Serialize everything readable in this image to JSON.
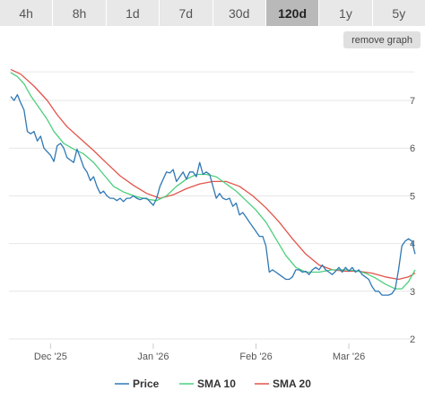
{
  "timeframes": [
    {
      "label": "4h",
      "active": false
    },
    {
      "label": "8h",
      "active": false
    },
    {
      "label": "1d",
      "active": false
    },
    {
      "label": "7d",
      "active": false
    },
    {
      "label": "30d",
      "active": false
    },
    {
      "label": "120d",
      "active": true
    },
    {
      "label": "1y",
      "active": false
    },
    {
      "label": "5y",
      "active": false
    }
  ],
  "remove_graph_label": "remove graph",
  "chart_data": {
    "type": "line",
    "ylim": [
      2,
      7.6
    ],
    "yticks": [
      2,
      3,
      4,
      5,
      6,
      7
    ],
    "xlim": [
      "2025-11-19",
      "2026-03-21"
    ],
    "xticks": [
      {
        "label": "Dec '25",
        "date": "2025-12-01"
      },
      {
        "label": "Jan '26",
        "date": "2026-01-01"
      },
      {
        "label": "Feb '26",
        "date": "2026-02-01"
      },
      {
        "label": "Mar '26",
        "date": "2026-03-01"
      }
    ],
    "grid": true,
    "legend_position": "bottom",
    "series": [
      {
        "name": "Price",
        "color": "#2f78b5",
        "points": [
          [
            "2025-11-19",
            7.08
          ],
          [
            "2025-11-20",
            7.0
          ],
          [
            "2025-11-21",
            7.12
          ],
          [
            "2025-11-22",
            6.95
          ],
          [
            "2025-11-23",
            6.8
          ],
          [
            "2025-11-24",
            6.35
          ],
          [
            "2025-11-25",
            6.3
          ],
          [
            "2025-11-26",
            6.35
          ],
          [
            "2025-11-27",
            6.15
          ],
          [
            "2025-11-28",
            6.25
          ],
          [
            "2025-11-29",
            6.0
          ],
          [
            "2025-12-01",
            5.85
          ],
          [
            "2025-12-02",
            5.72
          ],
          [
            "2025-12-03",
            6.05
          ],
          [
            "2025-12-04",
            6.1
          ],
          [
            "2025-12-05",
            6.0
          ],
          [
            "2025-12-06",
            5.8
          ],
          [
            "2025-12-07",
            5.75
          ],
          [
            "2025-12-08",
            5.7
          ],
          [
            "2025-12-09",
            5.98
          ],
          [
            "2025-12-10",
            5.8
          ],
          [
            "2025-12-11",
            5.6
          ],
          [
            "2025-12-12",
            5.5
          ],
          [
            "2025-12-13",
            5.32
          ],
          [
            "2025-12-14",
            5.4
          ],
          [
            "2025-12-15",
            5.2
          ],
          [
            "2025-12-16",
            5.05
          ],
          [
            "2025-12-17",
            5.1
          ],
          [
            "2025-12-18",
            5.0
          ],
          [
            "2025-12-19",
            4.95
          ],
          [
            "2025-12-20",
            4.95
          ],
          [
            "2025-12-21",
            4.9
          ],
          [
            "2025-12-22",
            4.95
          ],
          [
            "2025-12-23",
            4.88
          ],
          [
            "2025-12-24",
            4.95
          ],
          [
            "2025-12-25",
            4.95
          ],
          [
            "2025-12-26",
            5.0
          ],
          [
            "2025-12-27",
            4.95
          ],
          [
            "2025-12-28",
            4.92
          ],
          [
            "2025-12-29",
            4.95
          ],
          [
            "2025-12-30",
            4.95
          ],
          [
            "2026-01-01",
            4.8
          ],
          [
            "2026-01-02",
            4.95
          ],
          [
            "2026-01-03",
            5.2
          ],
          [
            "2026-01-04",
            5.35
          ],
          [
            "2026-01-05",
            5.5
          ],
          [
            "2026-01-06",
            5.48
          ],
          [
            "2026-01-07",
            5.55
          ],
          [
            "2026-01-08",
            5.3
          ],
          [
            "2026-01-09",
            5.4
          ],
          [
            "2026-01-10",
            5.5
          ],
          [
            "2026-01-11",
            5.35
          ],
          [
            "2026-01-12",
            5.5
          ],
          [
            "2026-01-13",
            5.5
          ],
          [
            "2026-01-14",
            5.4
          ],
          [
            "2026-01-15",
            5.7
          ],
          [
            "2026-01-16",
            5.45
          ],
          [
            "2026-01-17",
            5.5
          ],
          [
            "2026-01-18",
            5.45
          ],
          [
            "2026-01-19",
            5.2
          ],
          [
            "2026-01-20",
            4.95
          ],
          [
            "2026-01-21",
            5.05
          ],
          [
            "2026-01-22",
            4.95
          ],
          [
            "2026-01-23",
            4.92
          ],
          [
            "2026-01-24",
            4.95
          ],
          [
            "2026-01-25",
            4.78
          ],
          [
            "2026-01-26",
            4.85
          ],
          [
            "2026-01-27",
            4.6
          ],
          [
            "2026-01-28",
            4.65
          ],
          [
            "2026-01-29",
            4.55
          ],
          [
            "2026-01-30",
            4.45
          ],
          [
            "2026-01-31",
            4.35
          ],
          [
            "2026-02-01",
            4.25
          ],
          [
            "2026-02-02",
            4.15
          ],
          [
            "2026-02-03",
            4.15
          ],
          [
            "2026-02-04",
            3.95
          ],
          [
            "2026-02-05",
            3.4
          ],
          [
            "2026-02-06",
            3.45
          ],
          [
            "2026-02-07",
            3.4
          ],
          [
            "2026-02-08",
            3.35
          ],
          [
            "2026-02-09",
            3.3
          ],
          [
            "2026-02-10",
            3.25
          ],
          [
            "2026-02-11",
            3.25
          ],
          [
            "2026-02-12",
            3.3
          ],
          [
            "2026-02-13",
            3.45
          ],
          [
            "2026-02-14",
            3.45
          ],
          [
            "2026-02-15",
            3.4
          ],
          [
            "2026-02-16",
            3.42
          ],
          [
            "2026-02-17",
            3.35
          ],
          [
            "2026-02-18",
            3.45
          ],
          [
            "2026-02-19",
            3.5
          ],
          [
            "2026-02-20",
            3.45
          ],
          [
            "2026-02-21",
            3.55
          ],
          [
            "2026-02-22",
            3.45
          ],
          [
            "2026-02-23",
            3.4
          ],
          [
            "2026-02-24",
            3.35
          ],
          [
            "2026-02-25",
            3.42
          ],
          [
            "2026-02-26",
            3.5
          ],
          [
            "2026-02-27",
            3.4
          ],
          [
            "2026-02-28",
            3.5
          ],
          [
            "2026-03-01",
            3.42
          ],
          [
            "2026-03-02",
            3.5
          ],
          [
            "2026-03-03",
            3.4
          ],
          [
            "2026-03-04",
            3.45
          ],
          [
            "2026-03-05",
            3.35
          ],
          [
            "2026-03-06",
            3.3
          ],
          [
            "2026-03-07",
            3.25
          ],
          [
            "2026-03-08",
            3.1
          ],
          [
            "2026-03-09",
            3.0
          ],
          [
            "2026-03-10",
            3.0
          ],
          [
            "2026-03-11",
            2.92
          ],
          [
            "2026-03-12",
            2.92
          ],
          [
            "2026-03-13",
            2.92
          ],
          [
            "2026-03-14",
            2.95
          ],
          [
            "2026-03-15",
            3.05
          ],
          [
            "2026-03-16",
            3.45
          ],
          [
            "2026-03-17",
            3.95
          ],
          [
            "2026-03-18",
            4.05
          ],
          [
            "2026-03-19",
            4.1
          ],
          [
            "2026-03-20",
            4.05
          ],
          [
            "2026-03-21",
            3.78
          ]
        ]
      },
      {
        "name": "SMA 10",
        "color": "#4ccf7e",
        "points": [
          [
            "2025-11-19",
            7.58
          ],
          [
            "2025-11-21",
            7.5
          ],
          [
            "2025-11-23",
            7.35
          ],
          [
            "2025-11-25",
            7.1
          ],
          [
            "2025-11-27",
            6.9
          ],
          [
            "2025-11-30",
            6.6
          ],
          [
            "2025-12-02",
            6.35
          ],
          [
            "2025-12-05",
            6.1
          ],
          [
            "2025-12-08",
            5.98
          ],
          [
            "2025-12-11",
            5.88
          ],
          [
            "2025-12-14",
            5.7
          ],
          [
            "2025-12-17",
            5.45
          ],
          [
            "2025-12-20",
            5.2
          ],
          [
            "2025-12-23",
            5.08
          ],
          [
            "2025-12-27",
            4.98
          ],
          [
            "2025-12-31",
            4.92
          ],
          [
            "2026-01-02",
            4.9
          ],
          [
            "2026-01-05",
            5.0
          ],
          [
            "2026-01-08",
            5.2
          ],
          [
            "2026-01-11",
            5.35
          ],
          [
            "2026-01-14",
            5.45
          ],
          [
            "2026-01-17",
            5.45
          ],
          [
            "2026-01-20",
            5.4
          ],
          [
            "2026-01-23",
            5.25
          ],
          [
            "2026-01-26",
            5.1
          ],
          [
            "2026-01-29",
            4.9
          ],
          [
            "2026-02-01",
            4.7
          ],
          [
            "2026-02-04",
            4.45
          ],
          [
            "2026-02-07",
            4.1
          ],
          [
            "2026-02-10",
            3.75
          ],
          [
            "2026-02-13",
            3.5
          ],
          [
            "2026-02-16",
            3.4
          ],
          [
            "2026-02-20",
            3.4
          ],
          [
            "2026-02-24",
            3.45
          ],
          [
            "2026-02-28",
            3.45
          ],
          [
            "2026-03-03",
            3.43
          ],
          [
            "2026-03-06",
            3.38
          ],
          [
            "2026-03-09",
            3.28
          ],
          [
            "2026-03-12",
            3.15
          ],
          [
            "2026-03-15",
            3.05
          ],
          [
            "2026-03-17",
            3.05
          ],
          [
            "2026-03-19",
            3.2
          ],
          [
            "2026-03-21",
            3.45
          ]
        ]
      },
      {
        "name": "SMA 20",
        "color": "#e2544a",
        "points": [
          [
            "2025-11-19",
            7.65
          ],
          [
            "2025-11-22",
            7.55
          ],
          [
            "2025-11-26",
            7.3
          ],
          [
            "2025-11-30",
            7.0
          ],
          [
            "2025-12-03",
            6.7
          ],
          [
            "2025-12-06",
            6.45
          ],
          [
            "2025-12-10",
            6.2
          ],
          [
            "2025-12-14",
            5.95
          ],
          [
            "2025-12-18",
            5.68
          ],
          [
            "2025-12-22",
            5.42
          ],
          [
            "2025-12-26",
            5.22
          ],
          [
            "2025-12-30",
            5.05
          ],
          [
            "2026-01-03",
            4.95
          ],
          [
            "2026-01-07",
            5.02
          ],
          [
            "2026-01-11",
            5.15
          ],
          [
            "2026-01-15",
            5.25
          ],
          [
            "2026-01-19",
            5.3
          ],
          [
            "2026-01-23",
            5.3
          ],
          [
            "2026-01-27",
            5.2
          ],
          [
            "2026-01-31",
            5.0
          ],
          [
            "2026-02-04",
            4.75
          ],
          [
            "2026-02-08",
            4.45
          ],
          [
            "2026-02-12",
            4.1
          ],
          [
            "2026-02-16",
            3.78
          ],
          [
            "2026-02-20",
            3.55
          ],
          [
            "2026-02-24",
            3.45
          ],
          [
            "2026-02-28",
            3.42
          ],
          [
            "2026-03-04",
            3.42
          ],
          [
            "2026-03-08",
            3.38
          ],
          [
            "2026-03-12",
            3.3
          ],
          [
            "2026-03-16",
            3.25
          ],
          [
            "2026-03-19",
            3.3
          ],
          [
            "2026-03-21",
            3.38
          ]
        ]
      }
    ]
  }
}
